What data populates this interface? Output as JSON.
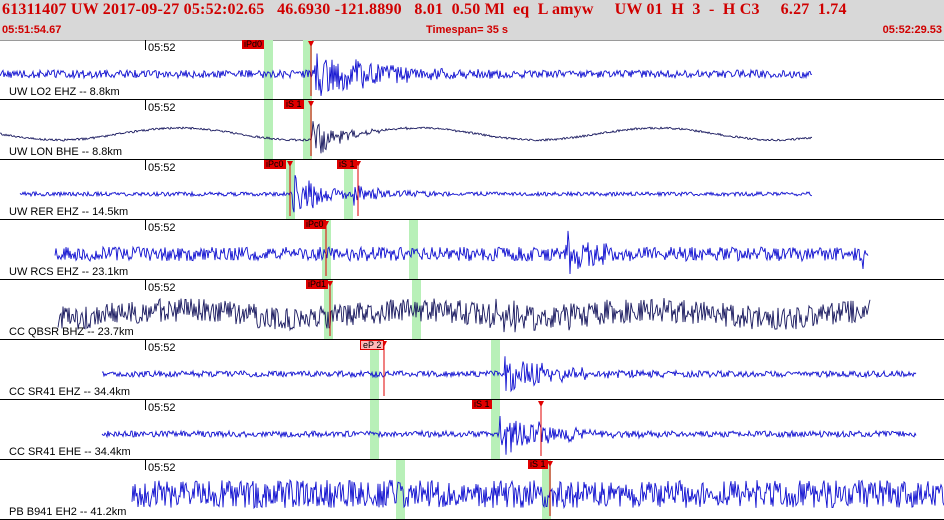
{
  "header": {
    "event_line": "61311407 UW 2017-09-27 05:52:02.65   46.6930 -121.8890   8.01  0.50 Ml  eq  L amyw     UW 01  H  3  -  H C3     6.27  1.74",
    "start_time": "05:51:54.67",
    "timespan": "Timespan=  35 s",
    "end_time": "05:52:29.53"
  },
  "colors": {
    "trace": "#1010d0",
    "trace_dark": "#1a1a60",
    "green_band": "#b8f0b8",
    "pick": "#e00000"
  },
  "panels": [
    {
      "id": "uw-lo2",
      "station_label": "UW LO2 EHZ -- 8.8km",
      "tick_label": "05:52",
      "trace_color": "#1010d0",
      "noise": 4,
      "slow": 0,
      "events": [
        {
          "t": 315,
          "amp": 26,
          "decay": 60
        }
      ],
      "greens": [
        268,
        307
      ],
      "picks": [
        {
          "text": "iPd0",
          "x": 242,
          "arrow": 311,
          "style": "strong"
        }
      ]
    },
    {
      "id": "uw-lon",
      "station_label": "UW LON BHE -- 8.8km",
      "tick_label": "05:52",
      "trace_color": "#1a1a60",
      "noise": 1,
      "slow": 6,
      "events": [
        {
          "t": 312,
          "amp": 22,
          "decay": 25
        }
      ],
      "greens": [
        268,
        307
      ],
      "picks": [
        {
          "text": "iS 1",
          "x": 284,
          "arrow": 311,
          "style": "strong"
        }
      ]
    },
    {
      "id": "uw-rer",
      "station_label": "UW RER EHZ -- 14.5km",
      "tick_label": "05:52",
      "trace_color": "#1010d0",
      "noise": 2,
      "slow": 0,
      "events": [
        {
          "t": 292,
          "amp": 26,
          "decay": 30
        },
        {
          "t": 354,
          "amp": 12,
          "decay": 30
        }
      ],
      "greens": [
        290,
        348
      ],
      "picks": [
        {
          "text": "iPc0",
          "x": 264,
          "arrow": 290,
          "style": "strong"
        },
        {
          "text": "iS 1",
          "x": 337,
          "arrow": 358,
          "style": "strong"
        }
      ]
    },
    {
      "id": "uw-rcs",
      "station_label": "UW RCS EHZ -- 23.1km",
      "tick_label": "05:52",
      "trace_color": "#1010d0",
      "noise": 7,
      "slow": 0,
      "events": [
        {
          "t": 565,
          "amp": 22,
          "decay": 25
        },
        {
          "t": 862,
          "amp": 12,
          "decay": 8
        }
      ],
      "greens": [
        326,
        413
      ],
      "picks": [
        {
          "text": "iPc0",
          "x": 304,
          "arrow": 326,
          "style": "strong"
        }
      ]
    },
    {
      "id": "cc-qbsr",
      "station_label": "CC QBSR BHZ -- 23.7km",
      "tick_label": "05:52",
      "trace_color": "#1a1a60",
      "noise": 12,
      "slow": 4,
      "events": [
        {
          "t": 490,
          "amp": 10,
          "decay": 60
        }
      ],
      "greens": [
        328,
        416
      ],
      "picks": [
        {
          "text": "iPd1",
          "x": 306,
          "arrow": 330,
          "style": "strong"
        }
      ]
    },
    {
      "id": "cc-sr41-ehz",
      "station_label": "CC SR41 EHZ -- 34.4km",
      "tick_label": "05:52",
      "trace_color": "#1010d0",
      "noise": 3,
      "slow": 0,
      "events": [
        {
          "t": 505,
          "amp": 24,
          "decay": 45
        }
      ],
      "greens": [
        374,
        495
      ],
      "picks": [
        {
          "text": "eP 2",
          "x": 360,
          "arrow": 384,
          "style": "weak"
        }
      ]
    },
    {
      "id": "cc-sr41-ehe",
      "station_label": "CC SR41 EHE -- 34.4km",
      "tick_label": "05:52",
      "trace_color": "#1010d0",
      "noise": 3,
      "slow": 0,
      "events": [
        {
          "t": 500,
          "amp": 26,
          "decay": 45
        }
      ],
      "greens": [
        374,
        495
      ],
      "picks": [
        {
          "text": "iS 1",
          "x": 472,
          "arrow": 541,
          "style": "strong"
        }
      ]
    },
    {
      "id": "pb-b941",
      "station_label": "PB B941 EH2 -- 41.2km",
      "tick_label": "05:52",
      "trace_color": "#1010d0",
      "noise": 14,
      "slow": 0,
      "events": [],
      "greens": [
        400,
        546
      ],
      "picks": [
        {
          "text": "iS 1",
          "x": 528,
          "arrow": 550,
          "style": "strong"
        }
      ]
    }
  ]
}
